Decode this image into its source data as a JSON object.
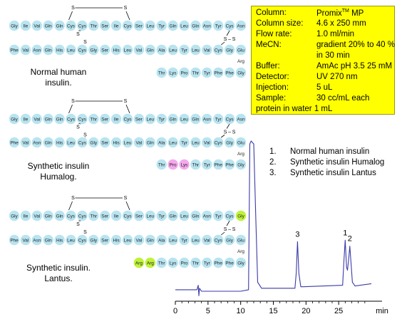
{
  "diagrams": [
    {
      "caption": [
        "Normal human",
        "insulin."
      ],
      "chainA": [
        "Gly",
        "Ile",
        "Val",
        "Gln",
        "Gln",
        "Cys",
        "Cys",
        "Thr",
        "Ser",
        "Ile",
        "Cys",
        "Ser",
        "Leu",
        "Tyr",
        "Gln",
        "Leu",
        "Gln",
        "Asn",
        "Tyr",
        "Cys",
        "Asn"
      ],
      "chainB": [
        "Phe",
        "Val",
        "Asn",
        "Gln",
        "His",
        "Leu",
        "Cys",
        "Gly",
        "Ser",
        "His",
        "Leu",
        "Val",
        "Gln",
        "Ala",
        "Leu",
        "Tyr",
        "Leu",
        "Val",
        "Cys",
        "Gly",
        "Glu"
      ],
      "arg": "Arg",
      "tail": [
        "Thr",
        "Lys",
        "Pro",
        "Thr",
        "Tyr",
        "Phe",
        "Phe",
        "Gly"
      ]
    },
    {
      "caption": [
        "Synthetic insulin",
        "Humalog."
      ],
      "chainA": [
        "Gly",
        "Ile",
        "Val",
        "Gln",
        "Gln",
        "Cys",
        "Cys",
        "Thr",
        "Ser",
        "Ile",
        "Cys",
        "Ser",
        "Leu",
        "Tyr",
        "Gln",
        "Leu",
        "Gln",
        "Asn",
        "Tyr",
        "Cys",
        "Asn"
      ],
      "chainB": [
        "Phe",
        "Val",
        "Asn",
        "Gln",
        "His",
        "Leu",
        "Cys",
        "Gly",
        "Ser",
        "His",
        "Leu",
        "Val",
        "Gln",
        "Ala",
        "Leu",
        "Tyr",
        "Leu",
        "Val",
        "Cys",
        "Gly",
        "Glu"
      ],
      "arg": "Arg",
      "tail": [
        "Thr",
        "Pro",
        "Lys",
        "Thr",
        "Tyr",
        "Phe",
        "Phe",
        "Gly"
      ]
    },
    {
      "caption": [
        "Synthetic insulin.",
        "Lantus."
      ],
      "chainA": [
        "Gly",
        "Ile",
        "Val",
        "Gln",
        "Gln",
        "Cys",
        "Cys",
        "Thr",
        "Ser",
        "Ile",
        "Cys",
        "Ser",
        "Leu",
        "Tyr",
        "Gln",
        "Leu",
        "Gln",
        "Asn",
        "Tyr",
        "Cys",
        "Gly"
      ],
      "chainB": [
        "Phe",
        "Val",
        "Asn",
        "Gln",
        "His",
        "Leu",
        "Cys",
        "Gly",
        "Ser",
        "His",
        "Leu",
        "Val",
        "Gln",
        "Ala",
        "Leu",
        "Tyr",
        "Leu",
        "Val",
        "Cys",
        "Gly",
        "Glu"
      ],
      "arg": "Arg",
      "tail": [
        "Arg",
        "Arg",
        "Thr",
        "Lys",
        "Pro",
        "Thr",
        "Tyr",
        "Phe",
        "Phe",
        "Gly"
      ]
    }
  ],
  "disulfide_label": "S",
  "colors": {
    "residue": "#b8e4f0",
    "humalog_swap": "#f4a9ec",
    "lantus_mod": "#bff23a",
    "box": "#ffff00",
    "trace": "#3a3aa8"
  },
  "conditions": [
    {
      "key": "Column:",
      "value": "Promix",
      "sup": "TM",
      "after": " MP"
    },
    {
      "key": "Column size:",
      "value": "4.6  x 250 mm"
    },
    {
      "key": "Flow  rate:",
      "value": "1.0 ml/min"
    },
    {
      "key": "MeCN:",
      "value": "gradient 20% to 40 %"
    },
    {
      "key": "",
      "value": "in 30 min"
    },
    {
      "key": "Buffer:",
      "value": "AmAc pH 3.5 25 mM"
    },
    {
      "key": "Detector:",
      "value": "UV 270 nm"
    },
    {
      "key": "Injection:",
      "value": " 5 uL"
    },
    {
      "key": "Sample:",
      "value": "   30 cc/mL each"
    },
    {
      "key": "protein in water 1 mL",
      "value": ""
    }
  ],
  "legend": [
    {
      "num": "1.",
      "text": "Normal human insulin"
    },
    {
      "num": "2.",
      "text": "Synthetic insulin Humalog"
    },
    {
      "num": "3.",
      "text": "Synthetic insulin Lantus"
    }
  ],
  "chart_data": {
    "type": "line",
    "xlabel": "min",
    "xlim": [
      0,
      30
    ],
    "xticks": [
      0,
      5,
      10,
      15,
      20,
      25
    ],
    "peak_labels": [
      {
        "label": "3",
        "x": 18.7
      },
      {
        "label": "1",
        "x": 26.0
      },
      {
        "label": "2",
        "x": 26.7
      }
    ],
    "series": [
      {
        "x": [
          0,
          3.3,
          3.5,
          3.6,
          3.7,
          4.0,
          10,
          11.2,
          11.4,
          11.6,
          12.0,
          12.3,
          12.6,
          13.2,
          18.3,
          18.5,
          18.7,
          18.9,
          19.2,
          19.6,
          25.6,
          25.8,
          26.0,
          26.2,
          26.35,
          26.5,
          26.7,
          26.9,
          27.1,
          27.5,
          30
        ],
        "y": [
          0.01,
          0.01,
          0.04,
          -0.03,
          0.02,
          0.0,
          0.0,
          0.01,
          0.98,
          1.0,
          0.98,
          0.5,
          0.06,
          0.02,
          0.02,
          0.12,
          0.33,
          0.12,
          0.03,
          0.03,
          0.04,
          0.2,
          0.34,
          0.16,
          0.14,
          0.2,
          0.3,
          0.18,
          0.06,
          0.035,
          0.05
        ]
      }
    ]
  }
}
